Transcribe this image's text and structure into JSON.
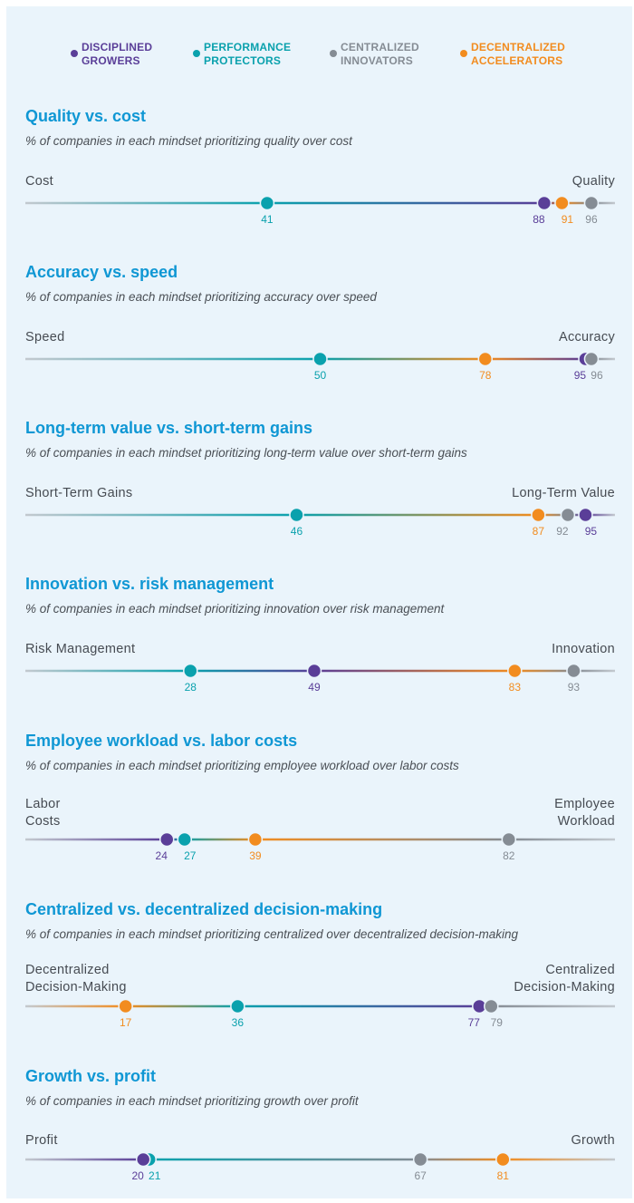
{
  "colors": {
    "disciplined_growers": "#5a3e98",
    "performance_protectors": "#0aa1ad",
    "centralized_innovators": "#858c94",
    "decentralized_accelerators": "#f28c1f",
    "track": "#c3c9cf",
    "title": "#0f97d4"
  },
  "chart_data": [
    {
      "type": "scatter",
      "title": "Quality vs. cost",
      "subtitle": "% of companies in each mindset prioritizing quality over cost",
      "left_label": "Cost",
      "right_label": "Quality",
      "xlim": [
        0,
        100
      ],
      "series": [
        {
          "name": "Disciplined Growers",
          "key": "disciplined_growers",
          "value": 88
        },
        {
          "name": "Performance Protectors",
          "key": "performance_protectors",
          "value": 41
        },
        {
          "name": "Centralized Innovators",
          "key": "centralized_innovators",
          "value": 96
        },
        {
          "name": "Decentralized Accelerators",
          "key": "decentralized_accelerators",
          "value": 91
        }
      ]
    },
    {
      "type": "scatter",
      "title": "Accuracy vs. speed",
      "subtitle": "% of companies in each mindset prioritizing accuracy over speed",
      "left_label": "Speed",
      "right_label": "Accuracy",
      "xlim": [
        0,
        100
      ],
      "series": [
        {
          "name": "Disciplined Growers",
          "key": "disciplined_growers",
          "value": 95
        },
        {
          "name": "Performance Protectors",
          "key": "performance_protectors",
          "value": 50
        },
        {
          "name": "Centralized Innovators",
          "key": "centralized_innovators",
          "value": 96
        },
        {
          "name": "Decentralized Accelerators",
          "key": "decentralized_accelerators",
          "value": 78
        }
      ]
    },
    {
      "type": "scatter",
      "title": "Long-term value vs. short-term gains",
      "subtitle": "% of companies in each mindset prioritizing long-term value over short-term gains",
      "left_label": "Short-Term Gains",
      "right_label": "Long-Term Value",
      "xlim": [
        0,
        100
      ],
      "series": [
        {
          "name": "Disciplined Growers",
          "key": "disciplined_growers",
          "value": 95
        },
        {
          "name": "Performance Protectors",
          "key": "performance_protectors",
          "value": 46
        },
        {
          "name": "Centralized Innovators",
          "key": "centralized_innovators",
          "value": 92
        },
        {
          "name": "Decentralized Accelerators",
          "key": "decentralized_accelerators",
          "value": 87
        }
      ]
    },
    {
      "type": "scatter",
      "title": "Innovation vs. risk management",
      "subtitle": "% of companies in each mindset prioritizing innovation over risk management",
      "left_label": "Risk Management",
      "right_label": "Innovation",
      "xlim": [
        0,
        100
      ],
      "series": [
        {
          "name": "Disciplined Growers",
          "key": "disciplined_growers",
          "value": 49
        },
        {
          "name": "Performance Protectors",
          "key": "performance_protectors",
          "value": 28
        },
        {
          "name": "Centralized Innovators",
          "key": "centralized_innovators",
          "value": 93
        },
        {
          "name": "Decentralized Accelerators",
          "key": "decentralized_accelerators",
          "value": 83
        }
      ]
    },
    {
      "type": "scatter",
      "title": "Employee workload vs. labor costs",
      "subtitle": "% of companies in each mindset prioritizing employee workload over labor costs",
      "left_label": "Labor\nCosts",
      "right_label": "Employee\nWorkload",
      "xlim": [
        0,
        100
      ],
      "series": [
        {
          "name": "Disciplined Growers",
          "key": "disciplined_growers",
          "value": 24
        },
        {
          "name": "Performance Protectors",
          "key": "performance_protectors",
          "value": 27
        },
        {
          "name": "Centralized Innovators",
          "key": "centralized_innovators",
          "value": 82
        },
        {
          "name": "Decentralized Accelerators",
          "key": "decentralized_accelerators",
          "value": 39
        }
      ]
    },
    {
      "type": "scatter",
      "title": "Centralized vs. decentralized decision-making",
      "subtitle": "% of companies in each mindset prioritizing centralized over decentralized decision-making",
      "left_label": "Decentralized\nDecision-Making",
      "right_label": "Centralized\nDecision-Making",
      "xlim": [
        0,
        100
      ],
      "series": [
        {
          "name": "Disciplined Growers",
          "key": "disciplined_growers",
          "value": 77
        },
        {
          "name": "Performance Protectors",
          "key": "performance_protectors",
          "value": 36
        },
        {
          "name": "Centralized Innovators",
          "key": "centralized_innovators",
          "value": 79
        },
        {
          "name": "Decentralized Accelerators",
          "key": "decentralized_accelerators",
          "value": 17
        }
      ]
    },
    {
      "type": "scatter",
      "title": "Growth vs. profit",
      "subtitle": "% of companies in each mindset prioritizing growth over profit",
      "left_label": "Profit",
      "right_label": "Growth",
      "xlim": [
        0,
        100
      ],
      "series": [
        {
          "name": "Disciplined Growers",
          "key": "disciplined_growers",
          "value": 20
        },
        {
          "name": "Performance Protectors",
          "key": "performance_protectors",
          "value": 21
        },
        {
          "name": "Centralized Innovators",
          "key": "centralized_innovators",
          "value": 67
        },
        {
          "name": "Decentralized Accelerators",
          "key": "decentralized_accelerators",
          "value": 81
        }
      ]
    }
  ],
  "legend": [
    {
      "key": "disciplined_growers",
      "label": "DISCIPLINED\nGROWERS"
    },
    {
      "key": "performance_protectors",
      "label": "PERFORMANCE\nPROTECTORS"
    },
    {
      "key": "centralized_innovators",
      "label": "CENTRALIZED\nINNOVATORS"
    },
    {
      "key": "decentralized_accelerators",
      "label": "DECENTRALIZED\nACCELERATORS"
    }
  ]
}
